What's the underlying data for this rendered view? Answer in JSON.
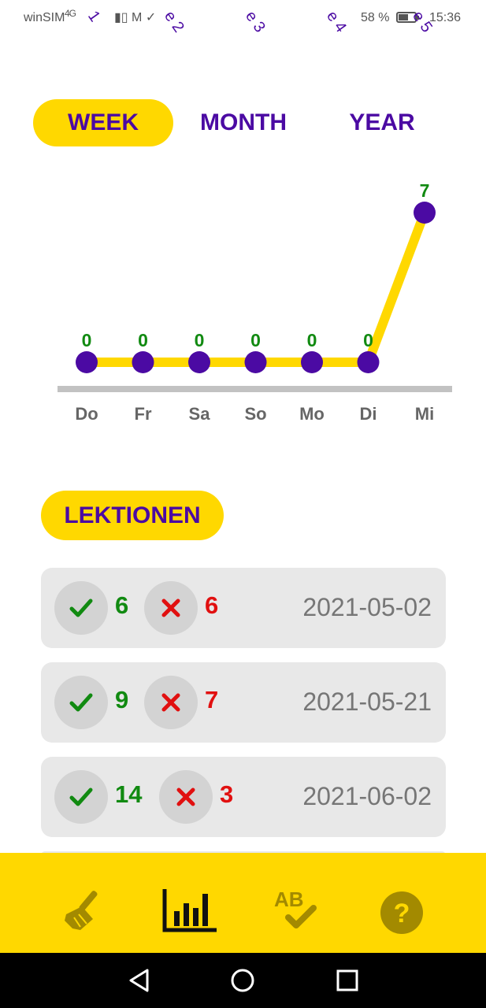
{
  "status_bar": {
    "carrier": "winSIM",
    "network": "4G",
    "battery": "58 %",
    "battery_fraction": 0.58,
    "time": "15:36",
    "overlay_fragments": [
      "1",
      "e 2",
      "e 3",
      "e 4",
      "e 5"
    ]
  },
  "tabs": [
    {
      "label": "WEEK",
      "active": true
    },
    {
      "label": "MONTH",
      "active": false
    },
    {
      "label": "YEAR",
      "active": false
    }
  ],
  "chart_data": {
    "type": "line",
    "categories": [
      "Do",
      "Fr",
      "Sa",
      "So",
      "Mo",
      "Di",
      "Mi"
    ],
    "values": [
      0,
      0,
      0,
      0,
      0,
      0,
      7
    ],
    "ylim": [
      0,
      7
    ],
    "grid": false,
    "colors": {
      "line": "#ffd800",
      "point": "#4b0aa3",
      "label": "#118a11",
      "axis": "#c2c2c2",
      "tick": "#666666"
    }
  },
  "section": {
    "label": "LEKTIONEN"
  },
  "lessons": [
    {
      "correct": "6",
      "wrong": "6",
      "date": "2021-05-02"
    },
    {
      "correct": "9",
      "wrong": "7",
      "date": "2021-05-21"
    },
    {
      "correct": "14",
      "wrong": "3",
      "date": "2021-06-02"
    }
  ],
  "bottom_nav": [
    {
      "icon": "broom-icon",
      "active": false
    },
    {
      "icon": "bar-chart-icon",
      "active": true
    },
    {
      "icon": "ab-check-icon",
      "active": false
    },
    {
      "icon": "help-icon",
      "active": false
    }
  ],
  "bottom_nav_ab_text": "AB",
  "bottom_nav_help_text": "?",
  "colors": {
    "accent": "#ffd800",
    "brand": "#4b0aa3",
    "success": "#118a11",
    "error": "#e11010"
  }
}
